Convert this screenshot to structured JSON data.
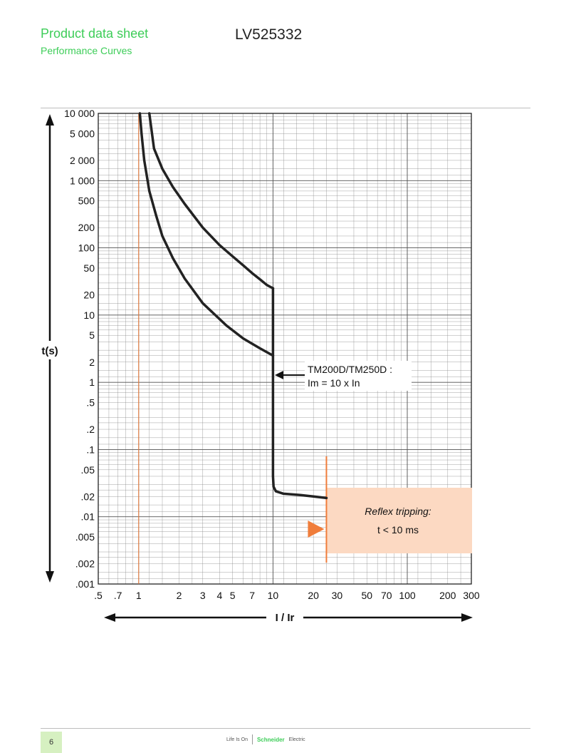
{
  "header": {
    "title": "Product data sheet",
    "subtitle": "Performance Curves",
    "reference": "LV525332"
  },
  "chart_data": {
    "type": "line",
    "title": "",
    "xlabel": "I / Ir",
    "ylabel": "t(s)",
    "xscale": "log",
    "yscale": "log",
    "xlim": [
      0.5,
      300
    ],
    "ylim": [
      0.001,
      10000
    ],
    "grid": true,
    "x_ticks": [
      0.5,
      0.7,
      1,
      2,
      3,
      4,
      5,
      7,
      10,
      20,
      30,
      50,
      70,
      100,
      200,
      300
    ],
    "x_tick_labels": [
      ".5",
      ".7",
      "1",
      "2",
      "3",
      "4",
      "5",
      "7",
      "10",
      "20",
      "30",
      "50",
      "70",
      "100",
      "200",
      "300"
    ],
    "y_ticks": [
      10000,
      5000,
      2000,
      1000,
      500,
      200,
      100,
      50,
      20,
      10,
      5,
      2,
      1,
      0.5,
      0.2,
      0.1,
      0.05,
      0.02,
      0.01,
      0.005,
      0.002,
      0.001
    ],
    "y_tick_labels": [
      "10 000",
      "5 000",
      "2 000",
      "1 000",
      "500",
      "200",
      "100",
      "50",
      "20",
      "10",
      "5",
      "2",
      "1",
      ".5",
      ".2",
      ".1",
      ".05",
      ".02",
      ".01",
      ".005",
      ".002",
      ".001"
    ],
    "series": [
      {
        "role": "lower-bound",
        "x": [
          1.02,
          1.05,
          1.1,
          1.2,
          1.35,
          1.5,
          1.8,
          2.2,
          3,
          4.5,
          6,
          8,
          10
        ],
        "y": [
          10000,
          5000,
          2000,
          700,
          300,
          150,
          70,
          35,
          15,
          7,
          4.5,
          3.2,
          2.5
        ]
      },
      {
        "role": "upper-bound",
        "x": [
          1.2,
          1.3,
          1.5,
          1.8,
          2.2,
          3,
          4,
          5,
          6,
          7,
          8,
          9,
          10
        ],
        "y": [
          10000,
          3000,
          1500,
          800,
          450,
          200,
          110,
          75,
          55,
          42,
          34,
          28,
          25
        ]
      },
      {
        "role": "instantaneous-trip",
        "x": [
          10,
          10,
          10,
          10.1,
          10.5,
          12,
          16,
          20,
          25
        ],
        "y": [
          25,
          1,
          0.04,
          0.028,
          0.024,
          0.022,
          0.021,
          0.02,
          0.019
        ]
      }
    ],
    "markers": {
      "vertical_x_at_1": 1,
      "reflex_line_x": 25,
      "colors": {
        "curve": "#222222",
        "grid": "#8a8a8a",
        "accent": "#f07d3b",
        "box": "#fcd9c2"
      }
    },
    "annotations": [
      {
        "id": "setting",
        "lines": [
          "TM200D/TM250D :",
          "Im = 10 x In"
        ]
      },
      {
        "id": "reflex",
        "title": "Reflex tripping:",
        "text": "t < 10 ms"
      }
    ]
  },
  "footer": {
    "page_number": "6",
    "tagline": "Life Is On",
    "brand": "Schneider",
    "brand_sub": "Electric"
  }
}
